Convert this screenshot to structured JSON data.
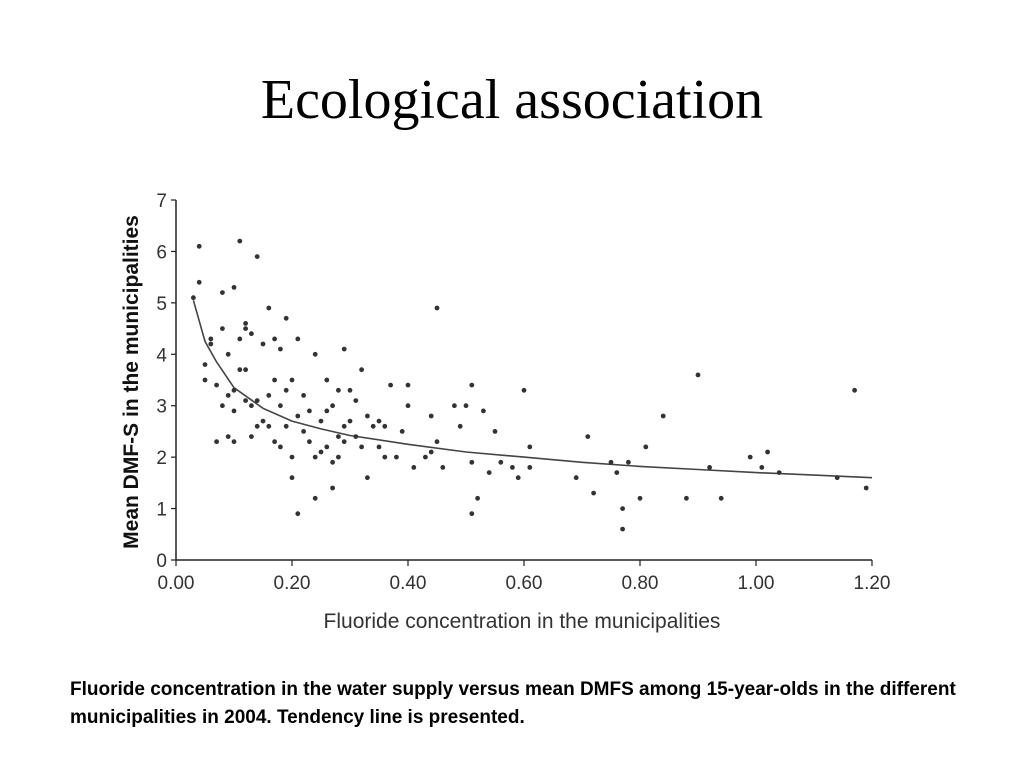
{
  "slide": {
    "title": "Ecological association",
    "caption": "Fluoride concentration in the water supply versus mean DMFS among 15-year-olds in the different municipalities in 2004. Tendency line is presented."
  },
  "chart_data": {
    "type": "scatter",
    "xlabel": "Fluoride concentration in the municipalities",
    "ylabel": "Mean DMF-S in the municipalities",
    "xlim": [
      0,
      1.2
    ],
    "ylim": [
      0,
      7
    ],
    "xticks": [
      "0.00",
      "0.20",
      "0.40",
      "0.60",
      "0.80",
      "1.00",
      "1.20"
    ],
    "yticks": [
      "0",
      "1",
      "2",
      "3",
      "4",
      "5",
      "6",
      "7"
    ],
    "grid": false,
    "colors": {
      "marker": "#333333",
      "trend": "#444444",
      "axis": "#222222"
    },
    "points": [
      [
        0.03,
        5.1
      ],
      [
        0.04,
        6.1
      ],
      [
        0.04,
        5.4
      ],
      [
        0.05,
        3.8
      ],
      [
        0.05,
        3.5
      ],
      [
        0.06,
        4.3
      ],
      [
        0.06,
        4.2
      ],
      [
        0.07,
        3.4
      ],
      [
        0.07,
        2.3
      ],
      [
        0.08,
        5.2
      ],
      [
        0.08,
        4.5
      ],
      [
        0.08,
        3.0
      ],
      [
        0.09,
        3.2
      ],
      [
        0.09,
        2.4
      ],
      [
        0.09,
        4.0
      ],
      [
        0.1,
        5.3
      ],
      [
        0.1,
        3.3
      ],
      [
        0.1,
        2.9
      ],
      [
        0.1,
        2.3
      ],
      [
        0.11,
        6.2
      ],
      [
        0.11,
        3.7
      ],
      [
        0.11,
        4.3
      ],
      [
        0.12,
        4.6
      ],
      [
        0.12,
        3.1
      ],
      [
        0.12,
        3.7
      ],
      [
        0.12,
        4.5
      ],
      [
        0.13,
        3.0
      ],
      [
        0.13,
        2.4
      ],
      [
        0.13,
        4.4
      ],
      [
        0.14,
        5.9
      ],
      [
        0.14,
        3.1
      ],
      [
        0.14,
        2.6
      ],
      [
        0.15,
        4.2
      ],
      [
        0.15,
        2.7
      ],
      [
        0.16,
        4.9
      ],
      [
        0.16,
        3.2
      ],
      [
        0.16,
        2.6
      ],
      [
        0.17,
        4.3
      ],
      [
        0.17,
        2.3
      ],
      [
        0.17,
        3.5
      ],
      [
        0.18,
        4.1
      ],
      [
        0.18,
        3.0
      ],
      [
        0.18,
        2.2
      ],
      [
        0.19,
        4.7
      ],
      [
        0.19,
        3.3
      ],
      [
        0.19,
        2.6
      ],
      [
        0.2,
        3.5
      ],
      [
        0.2,
        2.0
      ],
      [
        0.2,
        1.6
      ],
      [
        0.21,
        4.3
      ],
      [
        0.21,
        2.8
      ],
      [
        0.21,
        0.9
      ],
      [
        0.22,
        3.2
      ],
      [
        0.22,
        2.5
      ],
      [
        0.23,
        2.9
      ],
      [
        0.23,
        2.3
      ],
      [
        0.24,
        4.0
      ],
      [
        0.24,
        2.0
      ],
      [
        0.24,
        1.2
      ],
      [
        0.25,
        2.7
      ],
      [
        0.25,
        2.1
      ],
      [
        0.26,
        3.5
      ],
      [
        0.26,
        2.9
      ],
      [
        0.26,
        2.2
      ],
      [
        0.27,
        3.0
      ],
      [
        0.27,
        1.9
      ],
      [
        0.27,
        1.4
      ],
      [
        0.28,
        3.3
      ],
      [
        0.28,
        2.4
      ],
      [
        0.28,
        2.0
      ],
      [
        0.29,
        4.1
      ],
      [
        0.29,
        2.3
      ],
      [
        0.29,
        2.6
      ],
      [
        0.3,
        3.3
      ],
      [
        0.3,
        2.7
      ],
      [
        0.31,
        2.4
      ],
      [
        0.31,
        3.1
      ],
      [
        0.32,
        3.7
      ],
      [
        0.32,
        2.2
      ],
      [
        0.33,
        2.8
      ],
      [
        0.33,
        1.6
      ],
      [
        0.34,
        2.6
      ],
      [
        0.35,
        2.7
      ],
      [
        0.35,
        2.2
      ],
      [
        0.36,
        2.6
      ],
      [
        0.36,
        2.0
      ],
      [
        0.37,
        3.4
      ],
      [
        0.38,
        2.0
      ],
      [
        0.39,
        2.5
      ],
      [
        0.4,
        3.4
      ],
      [
        0.4,
        3.0
      ],
      [
        0.41,
        1.8
      ],
      [
        0.43,
        2.0
      ],
      [
        0.44,
        2.1
      ],
      [
        0.44,
        2.8
      ],
      [
        0.45,
        4.9
      ],
      [
        0.45,
        2.3
      ],
      [
        0.46,
        1.8
      ],
      [
        0.48,
        3.0
      ],
      [
        0.49,
        2.6
      ],
      [
        0.5,
        3.0
      ],
      [
        0.51,
        3.4
      ],
      [
        0.51,
        1.9
      ],
      [
        0.51,
        0.9
      ],
      [
        0.52,
        1.2
      ],
      [
        0.53,
        2.9
      ],
      [
        0.54,
        1.7
      ],
      [
        0.55,
        2.5
      ],
      [
        0.56,
        1.9
      ],
      [
        0.58,
        1.8
      ],
      [
        0.59,
        1.6
      ],
      [
        0.6,
        3.3
      ],
      [
        0.61,
        2.2
      ],
      [
        0.61,
        1.8
      ],
      [
        0.69,
        1.6
      ],
      [
        0.71,
        2.4
      ],
      [
        0.72,
        1.3
      ],
      [
        0.75,
        1.9
      ],
      [
        0.76,
        1.7
      ],
      [
        0.77,
        1.0
      ],
      [
        0.77,
        0.6
      ],
      [
        0.78,
        1.9
      ],
      [
        0.8,
        1.2
      ],
      [
        0.81,
        2.2
      ],
      [
        0.84,
        2.8
      ],
      [
        0.88,
        1.2
      ],
      [
        0.9,
        3.6
      ],
      [
        0.92,
        1.8
      ],
      [
        0.94,
        1.2
      ],
      [
        0.99,
        2.0
      ],
      [
        1.01,
        1.8
      ],
      [
        1.02,
        2.1
      ],
      [
        1.04,
        1.7
      ],
      [
        1.14,
        1.6
      ],
      [
        1.17,
        3.3
      ],
      [
        1.19,
        1.4
      ]
    ],
    "trend_line": [
      [
        0.03,
        5.05
      ],
      [
        0.05,
        4.25
      ],
      [
        0.07,
        3.85
      ],
      [
        0.1,
        3.35
      ],
      [
        0.15,
        2.95
      ],
      [
        0.2,
        2.7
      ],
      [
        0.25,
        2.55
      ],
      [
        0.3,
        2.42
      ],
      [
        0.4,
        2.25
      ],
      [
        0.5,
        2.1
      ],
      [
        0.6,
        2.0
      ],
      [
        0.7,
        1.9
      ],
      [
        0.8,
        1.82
      ],
      [
        0.9,
        1.76
      ],
      [
        1.0,
        1.7
      ],
      [
        1.1,
        1.65
      ],
      [
        1.2,
        1.6
      ]
    ]
  }
}
